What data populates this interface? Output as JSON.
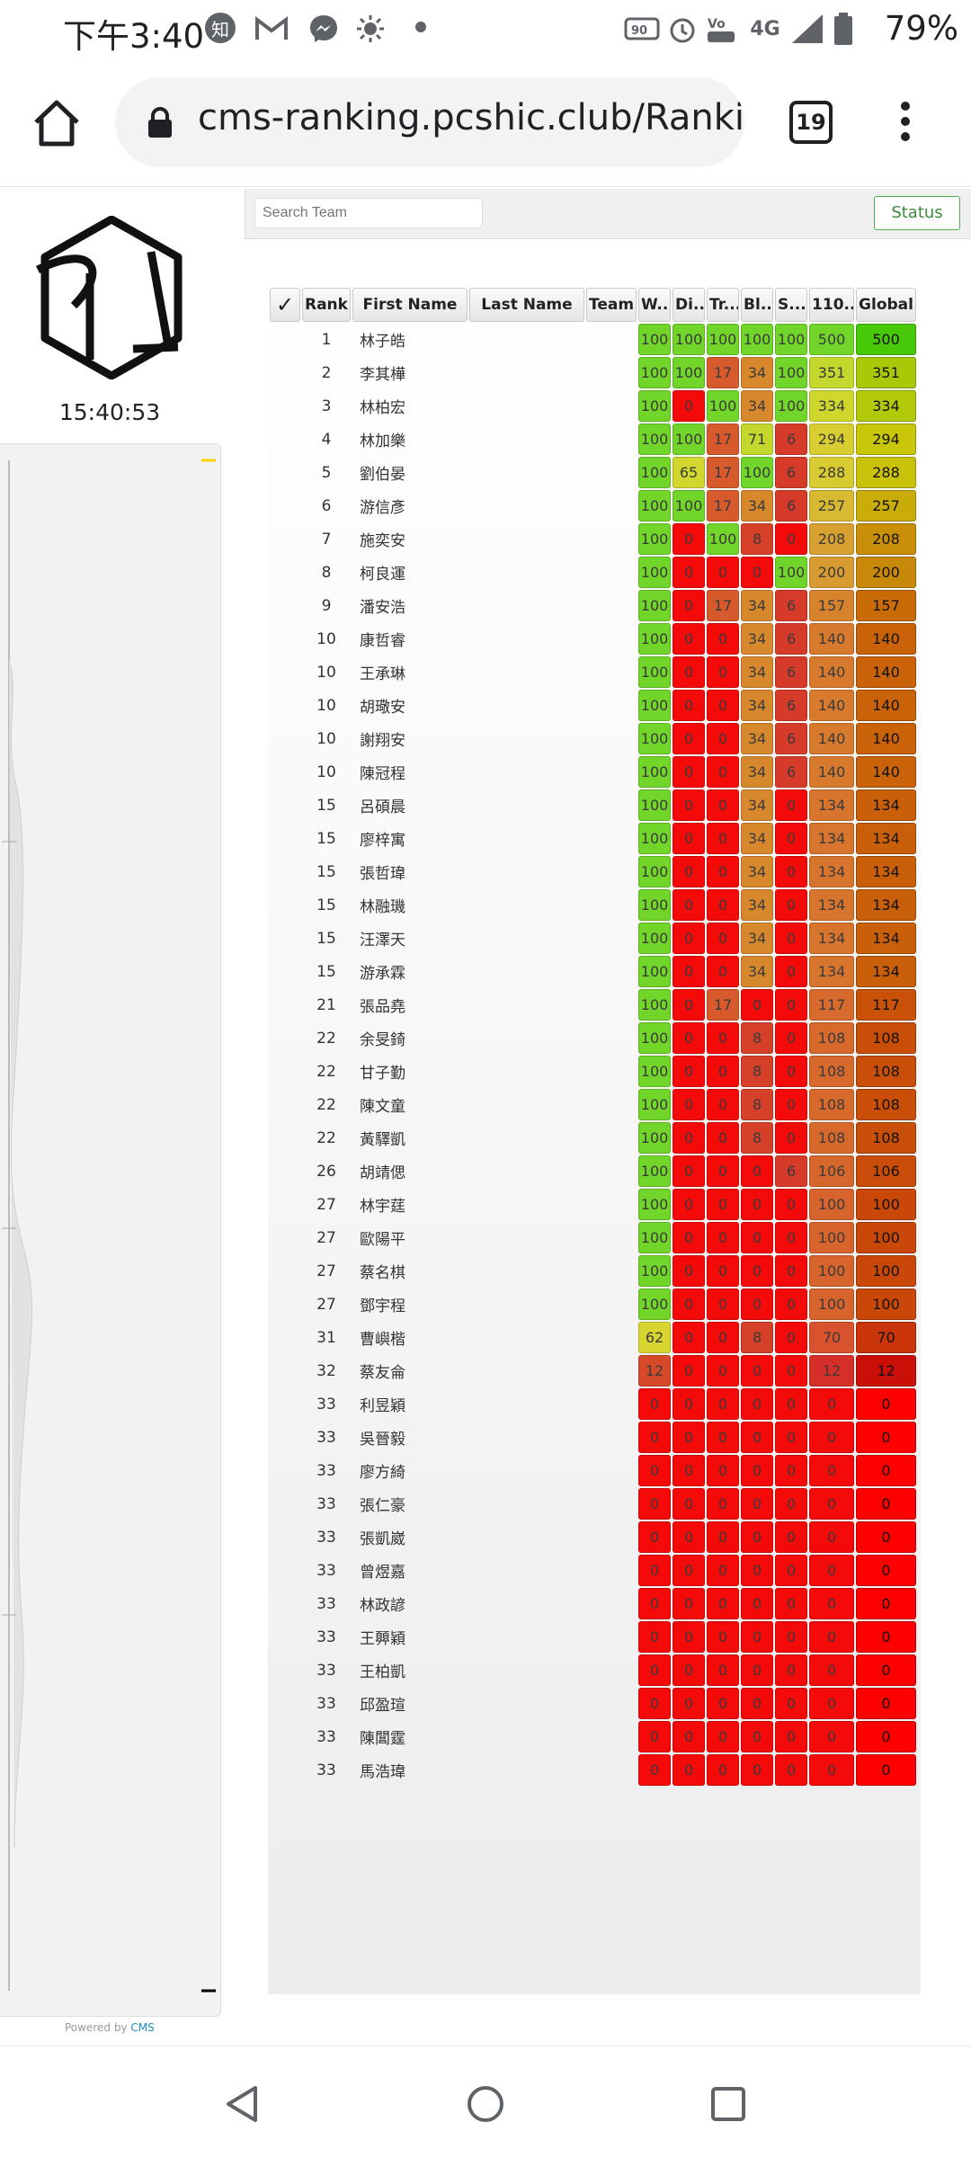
{
  "status_bar": {
    "time": "下午3:40",
    "battery": "79%",
    "icons": [
      "zhihu-icon",
      "gmail-icon",
      "messenger-icon",
      "brightness-icon",
      "dot-icon",
      "90hz-icon",
      "alarm-icon",
      "volte-icon",
      "4g-icon",
      "signal-icon",
      "battery-icon"
    ],
    "zhihu": "知",
    "net": "4G"
  },
  "browser": {
    "url": "cms-ranking.pcshic.club/Rankir",
    "tab_count": "19"
  },
  "sidebar": {
    "clock": "15:40:53",
    "powered_by": "Powered by",
    "powered_brand": "CMS"
  },
  "toolbar": {
    "search_placeholder": "Search Team",
    "status_label": "Status"
  },
  "table": {
    "headers": {
      "sel": "✓",
      "rank": "Rank",
      "first": "First Name",
      "last": "Last Name",
      "team": "Team",
      "p1": "W...",
      "p2": "Di...",
      "p3": "Tr...",
      "p4": "Bl...",
      "p5": "S...",
      "contest": "110...",
      "global": "Global"
    },
    "max_scores": [
      100,
      100,
      100,
      100,
      100,
      500,
      500
    ],
    "rows": [
      {
        "rank": "1",
        "name": "林子皓",
        "scores": [
          100,
          100,
          100,
          100,
          100,
          500,
          500
        ]
      },
      {
        "rank": "2",
        "name": "李其樺",
        "scores": [
          100,
          100,
          17,
          34,
          100,
          351,
          351
        ]
      },
      {
        "rank": "3",
        "name": "林柏宏",
        "scores": [
          100,
          0,
          100,
          34,
          100,
          334,
          334
        ]
      },
      {
        "rank": "4",
        "name": "林加樂",
        "scores": [
          100,
          100,
          17,
          71,
          6,
          294,
          294
        ]
      },
      {
        "rank": "5",
        "name": "劉伯晏",
        "scores": [
          100,
          65,
          17,
          100,
          6,
          288,
          288
        ]
      },
      {
        "rank": "6",
        "name": "游信彥",
        "scores": [
          100,
          100,
          17,
          34,
          6,
          257,
          257
        ]
      },
      {
        "rank": "7",
        "name": "施奕安",
        "scores": [
          100,
          0,
          100,
          8,
          0,
          208,
          208
        ]
      },
      {
        "rank": "8",
        "name": "柯良運",
        "scores": [
          100,
          0,
          0,
          0,
          100,
          200,
          200
        ]
      },
      {
        "rank": "9",
        "name": "潘安浩",
        "scores": [
          100,
          0,
          17,
          34,
          6,
          157,
          157
        ]
      },
      {
        "rank": "10",
        "name": "康哲睿",
        "scores": [
          100,
          0,
          0,
          34,
          6,
          140,
          140
        ]
      },
      {
        "rank": "10",
        "name": "王承琳",
        "scores": [
          100,
          0,
          0,
          34,
          6,
          140,
          140
        ]
      },
      {
        "rank": "10",
        "name": "胡璥安",
        "scores": [
          100,
          0,
          0,
          34,
          6,
          140,
          140
        ]
      },
      {
        "rank": "10",
        "name": "謝翔安",
        "scores": [
          100,
          0,
          0,
          34,
          6,
          140,
          140
        ]
      },
      {
        "rank": "10",
        "name": "陳冠程",
        "scores": [
          100,
          0,
          0,
          34,
          6,
          140,
          140
        ]
      },
      {
        "rank": "15",
        "name": "呂碩晨",
        "scores": [
          100,
          0,
          0,
          34,
          0,
          134,
          134
        ]
      },
      {
        "rank": "15",
        "name": "廖梓寓",
        "scores": [
          100,
          0,
          0,
          34,
          0,
          134,
          134
        ]
      },
      {
        "rank": "15",
        "name": "張哲瑋",
        "scores": [
          100,
          0,
          0,
          34,
          0,
          134,
          134
        ]
      },
      {
        "rank": "15",
        "name": "林融璣",
        "scores": [
          100,
          0,
          0,
          34,
          0,
          134,
          134
        ]
      },
      {
        "rank": "15",
        "name": "汪澤天",
        "scores": [
          100,
          0,
          0,
          34,
          0,
          134,
          134
        ]
      },
      {
        "rank": "15",
        "name": "游承霖",
        "scores": [
          100,
          0,
          0,
          34,
          0,
          134,
          134
        ]
      },
      {
        "rank": "21",
        "name": "張品堯",
        "scores": [
          100,
          0,
          17,
          0,
          0,
          117,
          117
        ]
      },
      {
        "rank": "22",
        "name": "余旻錡",
        "scores": [
          100,
          0,
          0,
          8,
          0,
          108,
          108
        ]
      },
      {
        "rank": "22",
        "name": "甘子勤",
        "scores": [
          100,
          0,
          0,
          8,
          0,
          108,
          108
        ]
      },
      {
        "rank": "22",
        "name": "陳文童",
        "scores": [
          100,
          0,
          0,
          8,
          0,
          108,
          108
        ]
      },
      {
        "rank": "22",
        "name": "黃驛凱",
        "scores": [
          100,
          0,
          0,
          8,
          0,
          108,
          108
        ]
      },
      {
        "rank": "26",
        "name": "胡靖偲",
        "scores": [
          100,
          0,
          0,
          0,
          6,
          106,
          106
        ]
      },
      {
        "rank": "27",
        "name": "林宇莛",
        "scores": [
          100,
          0,
          0,
          0,
          0,
          100,
          100
        ]
      },
      {
        "rank": "27",
        "name": "歐陽平",
        "scores": [
          100,
          0,
          0,
          0,
          0,
          100,
          100
        ]
      },
      {
        "rank": "27",
        "name": "蔡名棋",
        "scores": [
          100,
          0,
          0,
          0,
          0,
          100,
          100
        ]
      },
      {
        "rank": "27",
        "name": "鄧宇程",
        "scores": [
          100,
          0,
          0,
          0,
          0,
          100,
          100
        ]
      },
      {
        "rank": "31",
        "name": "曹嶼楷",
        "scores": [
          62,
          0,
          0,
          8,
          0,
          70,
          70
        ]
      },
      {
        "rank": "32",
        "name": "蔡友侖",
        "scores": [
          12,
          0,
          0,
          0,
          0,
          12,
          12
        ]
      },
      {
        "rank": "33",
        "name": "利昱穎",
        "scores": [
          0,
          0,
          0,
          0,
          0,
          0,
          0
        ]
      },
      {
        "rank": "33",
        "name": "吳晉毅",
        "scores": [
          0,
          0,
          0,
          0,
          0,
          0,
          0
        ]
      },
      {
        "rank": "33",
        "name": "廖方綺",
        "scores": [
          0,
          0,
          0,
          0,
          0,
          0,
          0
        ]
      },
      {
        "rank": "33",
        "name": "張仁豪",
        "scores": [
          0,
          0,
          0,
          0,
          0,
          0,
          0
        ]
      },
      {
        "rank": "33",
        "name": "張凱崴",
        "scores": [
          0,
          0,
          0,
          0,
          0,
          0,
          0
        ]
      },
      {
        "rank": "33",
        "name": "曾煜嘉",
        "scores": [
          0,
          0,
          0,
          0,
          0,
          0,
          0
        ]
      },
      {
        "rank": "33",
        "name": "林政諺",
        "scores": [
          0,
          0,
          0,
          0,
          0,
          0,
          0
        ]
      },
      {
        "rank": "33",
        "name": "王顨穎",
        "scores": [
          0,
          0,
          0,
          0,
          0,
          0,
          0
        ]
      },
      {
        "rank": "33",
        "name": "王柏凱",
        "scores": [
          0,
          0,
          0,
          0,
          0,
          0,
          0
        ]
      },
      {
        "rank": "33",
        "name": "邱盈瑄",
        "scores": [
          0,
          0,
          0,
          0,
          0,
          0,
          0
        ]
      },
      {
        "rank": "33",
        "name": "陳閶霆",
        "scores": [
          0,
          0,
          0,
          0,
          0,
          0,
          0
        ]
      },
      {
        "rank": "33",
        "name": "馬浩瑋",
        "scores": [
          0,
          0,
          0,
          0,
          0,
          0,
          0
        ]
      }
    ]
  },
  "nav": {
    "icons": [
      "back-icon",
      "home-circle-icon",
      "recents-icon"
    ]
  }
}
